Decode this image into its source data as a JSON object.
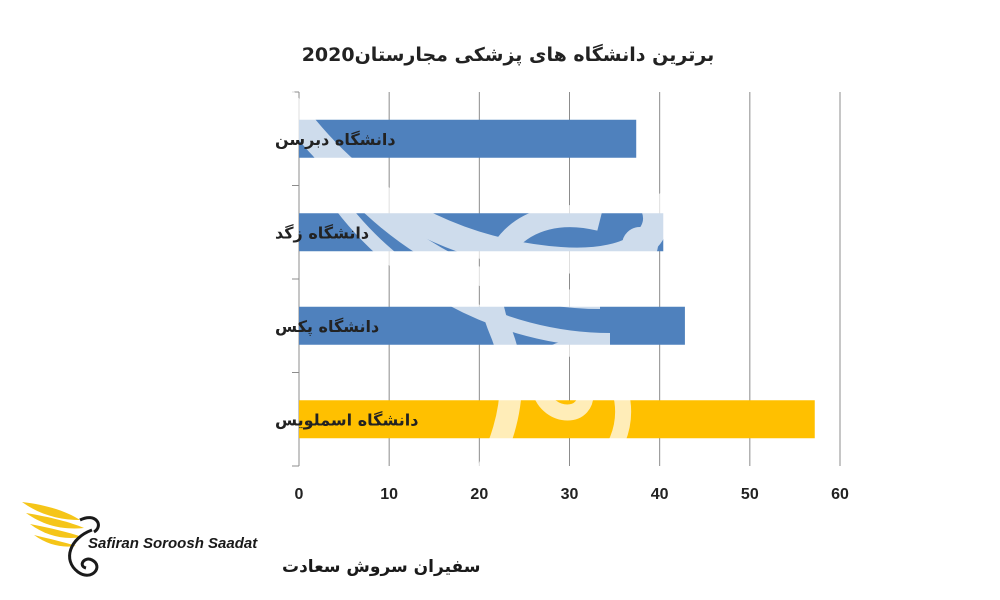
{
  "chart_data": {
    "type": "bar",
    "orientation": "horizontal",
    "title": "برترین دانشگاه های پزشکی مجارستان2020",
    "categories": [
      "دانشگاه دبرسن",
      "دانشگاه زگد",
      "دانشگاه پکس",
      "دانشگاه اسملویس"
    ],
    "values": [
      37.4,
      40.4,
      42.8,
      57.2
    ],
    "bar_colors": [
      "#4f81bd",
      "#4f81bd",
      "#4f81bd",
      "#ffc000"
    ],
    "xlim": [
      0,
      60
    ],
    "xticks": [
      0,
      10,
      20,
      30,
      40,
      50,
      60
    ],
    "grid": "vertical",
    "legend": "none"
  },
  "logo": {
    "name_en": "Safiran Soroosh Saadat",
    "name_fa": "سفیران سروش سعادت",
    "colors": {
      "accent": "#f5c518",
      "text": "#1a1a1a"
    },
    "icon": "phoenix-icon"
  },
  "watermark": {
    "icon": "phoenix-watermark-icon"
  }
}
